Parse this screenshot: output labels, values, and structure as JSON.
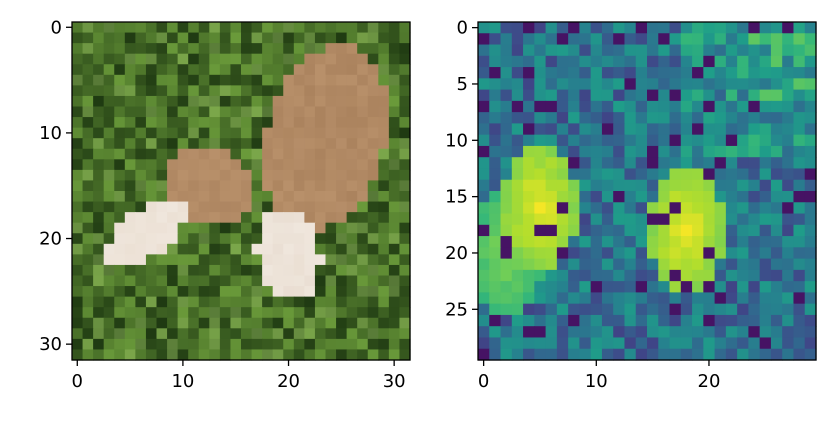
{
  "chart_data": [
    {
      "type": "heatmap",
      "panel": "left",
      "description_of_content": "32x32 pixel image",
      "colors": {
        "background": "#2f5a1e",
        "grass_light": "#6a9a3a",
        "grass_dark": "#1f3a12",
        "cap": "#b8906a",
        "stem": "#efe6dc"
      },
      "xlim": [
        -0.5,
        31.5
      ],
      "ylim": [
        31.5,
        -0.5
      ],
      "xticks": [
        0,
        10,
        20,
        30
      ],
      "yticks": [
        0,
        10,
        20,
        30
      ],
      "xtick_labels": [
        "0",
        "10",
        "20",
        "30"
      ],
      "ytick_labels": [
        "0",
        "10",
        "20",
        "30"
      ]
    },
    {
      "type": "heatmap",
      "panel": "right",
      "colormap": "viridis",
      "grid_size": 30,
      "xlim": [
        -0.5,
        29.5
      ],
      "ylim": [
        29.5,
        -0.5
      ],
      "xticks": [
        0,
        10,
        20
      ],
      "yticks": [
        0,
        5,
        10,
        15,
        20,
        25
      ],
      "xtick_labels": [
        "0",
        "10",
        "20"
      ],
      "ytick_labels": [
        "0",
        "5",
        "10",
        "15",
        "20",
        "25"
      ],
      "hotspots": [
        {
          "x": 5,
          "y": 16,
          "level": 1.0
        },
        {
          "x": 2,
          "y": 20,
          "level": 0.85
        },
        {
          "x": 18,
          "y": 18,
          "level": 1.0
        }
      ]
    }
  ]
}
